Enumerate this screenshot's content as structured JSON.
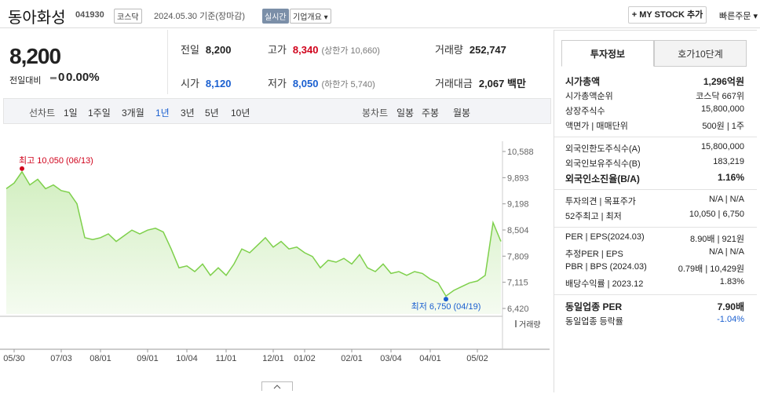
{
  "header": {
    "name": "동아화성",
    "code": "041930",
    "market": "코스닥",
    "date": "2024.05.30",
    "basis": "기준(장마감)",
    "realtime": "실시간",
    "company_info": "기업개요",
    "my_stock": "+ MY STOCK 추가",
    "quick_order": "빠른주문"
  },
  "price": {
    "current": "8,200",
    "change_label": "전일대비",
    "change": "0",
    "change_rate": "0.00%"
  },
  "quote": {
    "prev_close": {
      "label": "전일",
      "value": "8,200"
    },
    "high": {
      "label": "고가",
      "value": "8,340",
      "limit": "(상한가 10,660)"
    },
    "volume": {
      "label": "거래량",
      "value": "252,747"
    },
    "open": {
      "label": "시가",
      "value": "8,120"
    },
    "low": {
      "label": "저가",
      "value": "8,050",
      "limit": "(하한가 5,740)"
    },
    "amount": {
      "label": "거래대금",
      "value": "2,067",
      "unit": "백만"
    }
  },
  "line_tabs": {
    "label": "선차트",
    "items": [
      "1일",
      "1주일",
      "3개월",
      "1년",
      "3년",
      "5년",
      "10년"
    ],
    "active": 3
  },
  "candle_tabs": {
    "label": "봉차트",
    "items": [
      "일봉",
      "주봉",
      "월봉"
    ]
  },
  "chart_data": {
    "type": "area",
    "color": "#7ed04b",
    "categories": [
      null,
      "05/30",
      null,
      null,
      null,
      null,
      null,
      "07/03",
      null,
      null,
      null,
      null,
      "08/01",
      null,
      null,
      null,
      null,
      null,
      "09/01",
      null,
      null,
      null,
      null,
      "10/04",
      null,
      null,
      null,
      null,
      "11/01",
      null,
      null,
      null,
      null,
      null,
      "12/01",
      null,
      null,
      null,
      "01/02",
      null,
      null,
      null,
      null,
      null,
      "02/01",
      null,
      null,
      null,
      null,
      "03/04",
      null,
      null,
      null,
      null,
      "04/01",
      null,
      null,
      null,
      null,
      null,
      "05/02",
      null,
      null,
      null
    ],
    "series": [
      {
        "values": [
          9600,
          9750,
          10050,
          9700,
          9850,
          9600,
          9700,
          9550,
          9500,
          9200,
          8300,
          8250,
          8300,
          8400,
          8200,
          8350,
          8500,
          8400,
          8500,
          8550,
          8450,
          8000,
          7500,
          7550,
          7400,
          7600,
          7300,
          7500,
          7300,
          7600,
          8000,
          7900,
          8100,
          8300,
          8050,
          8200,
          8000,
          8050,
          7900,
          7800,
          7500,
          7700,
          7650,
          7750,
          7600,
          7850,
          7500,
          7400,
          7600,
          7350,
          7400,
          7300,
          7400,
          7350,
          7200,
          7100,
          6750,
          6900,
          7000,
          7100,
          7150,
          7300,
          8700,
          8200
        ]
      }
    ],
    "ylim": [
      6420,
      10588
    ],
    "yticks": [
      {
        "value": 6420,
        "label": "6,420"
      },
      {
        "value": 7115,
        "label": "7,115"
      },
      {
        "value": 7809,
        "label": "7,809"
      },
      {
        "value": 8504,
        "label": "8,504"
      },
      {
        "value": 9198,
        "label": "9,198"
      },
      {
        "value": 9893,
        "label": "9,893"
      },
      {
        "value": 10588,
        "label": "10,588"
      }
    ],
    "annotations": [
      {
        "text": "최고 10,050 (06/13)",
        "value": 10050,
        "color": "#d0021b"
      },
      {
        "text": "최저 6,750 (04/19)",
        "value": 6750,
        "color": "#1a5fd0"
      }
    ],
    "volume_label": "거래량"
  },
  "side": {
    "tabs": [
      "투자정보",
      "호가10단계"
    ],
    "groups": [
      [
        {
          "label": "시가총액",
          "value": "1,296억원",
          "strong": true
        },
        {
          "label": "시가총액순위",
          "value": "코스닥 667위"
        },
        {
          "label": "상장주식수",
          "value": "15,800,000"
        },
        {
          "label": "액면가 | 매매단위",
          "value": "500원 | 1주"
        }
      ],
      [
        {
          "label": "외국인한도주식수(A)",
          "value": "15,800,000"
        },
        {
          "label": "외국인보유주식수(B)",
          "value": "183,219"
        },
        {
          "label": "외국인소진율(B/A)",
          "value": "1.16%",
          "strong": true
        }
      ],
      [
        {
          "label": "투자의견 | 목표주가",
          "value": "N/A | N/A"
        },
        {
          "label": "52주최고 | 최저",
          "value": "10,050 | 6,750"
        }
      ],
      [
        {
          "label": "PER | EPS(2024.03)",
          "value": "8.90배 | 921원"
        },
        {
          "label": "추정PER | EPS",
          "value": "N/A | N/A"
        },
        {
          "label": "PBR | BPS (2024.03)",
          "value": "0.79배 | 10,429원"
        },
        {
          "label": "배당수익률 | 2023.12",
          "value": "1.83%"
        }
      ],
      [
        {
          "label": "동일업종 PER",
          "value": "7.90배",
          "strong": true
        },
        {
          "label": "동일업종 등락률",
          "value": "-1.04%",
          "color": "#1a5fd0"
        }
      ]
    ]
  }
}
